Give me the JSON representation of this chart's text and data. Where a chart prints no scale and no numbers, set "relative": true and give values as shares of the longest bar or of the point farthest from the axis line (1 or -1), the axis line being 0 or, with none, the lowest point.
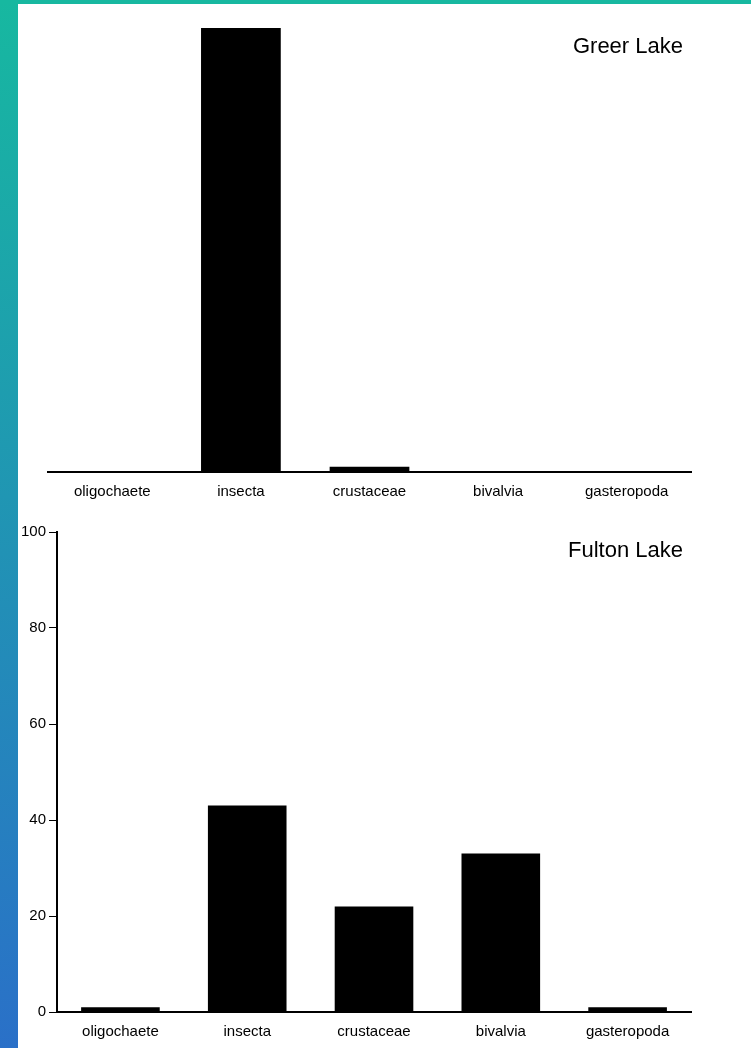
{
  "chart_data": [
    {
      "type": "bar",
      "title": "Greer Lake",
      "categories": [
        "oligochaete",
        "insecta",
        "crustaceae",
        "bivalvia",
        "gasteropoda"
      ],
      "values": [
        0,
        1,
        0.012,
        0,
        0
      ],
      "color": "#000000",
      "relative": true,
      "grid": false,
      "legend": false
    },
    {
      "type": "bar",
      "title": "Fulton Lake",
      "categories": [
        "oligochaete",
        "insecta",
        "crustaceae",
        "bivalvia",
        "gasteropoda"
      ],
      "values": [
        1,
        43,
        22,
        33,
        1
      ],
      "color": "#000000",
      "ylim": [
        0,
        100
      ],
      "yticks": [
        0,
        20,
        40,
        60,
        80,
        100
      ],
      "grid": false,
      "legend": false
    }
  ]
}
